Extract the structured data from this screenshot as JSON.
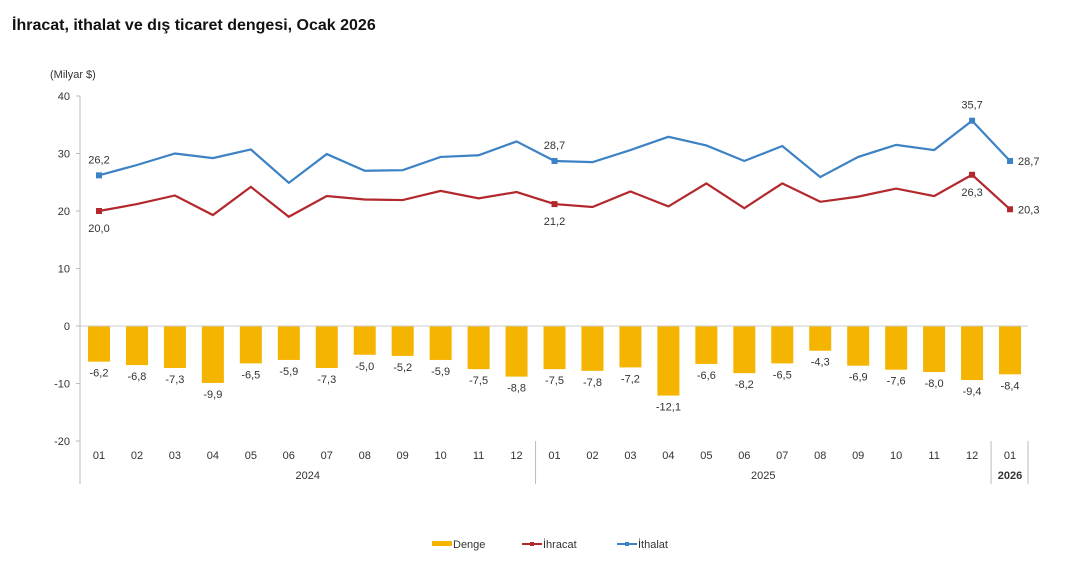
{
  "title": "İhracat, ithalat ve dış ticaret dengesi, Ocak 2026",
  "chart_data": {
    "type": "bar+line",
    "title": "İhracat, ithalat ve dış ticaret dengesi, Ocak 2026",
    "ylabel": "(Milyar $)",
    "ylim": [
      -20,
      40
    ],
    "yticks": [
      -20,
      -10,
      0,
      10,
      20,
      30,
      40
    ],
    "grid": false,
    "legend_position": "bottom",
    "categories": [
      "01",
      "02",
      "03",
      "04",
      "05",
      "06",
      "07",
      "08",
      "09",
      "10",
      "11",
      "12",
      "01",
      "02",
      "03",
      "04",
      "05",
      "06",
      "07",
      "08",
      "09",
      "10",
      "11",
      "12",
      "01"
    ],
    "year_groups": [
      {
        "label": "2024",
        "count": 12
      },
      {
        "label": "2025",
        "count": 12
      },
      {
        "label": "2026",
        "count": 1
      }
    ],
    "series": [
      {
        "name": "Denge",
        "type": "bar",
        "color": "#F5B400",
        "values": [
          -6.2,
          -6.8,
          -7.3,
          -9.9,
          -6.5,
          -5.9,
          -7.3,
          -5.0,
          -5.2,
          -5.9,
          -7.5,
          -8.8,
          -7.5,
          -7.8,
          -7.2,
          -12.1,
          -6.6,
          -8.2,
          -6.5,
          -4.3,
          -6.9,
          -7.6,
          -8.0,
          -9.4,
          -8.4
        ],
        "labels": [
          "-6,2",
          "-6,8",
          "-7,3",
          "-9,9",
          "-6,5",
          "-5,9",
          "-7,3",
          "-5,0",
          "-5,2",
          "-5,9",
          "-7,5",
          "-8,8",
          "-7,5",
          "-7,8",
          "-7,2",
          "-12,1",
          "-6,6",
          "-8,2",
          "-6,5",
          "-4,3",
          "-6,9",
          "-7,6",
          "-8,0",
          "-9,4",
          "-8,4"
        ]
      },
      {
        "name": "İhracat",
        "type": "line",
        "color": "#B3282D",
        "values": [
          20.0,
          21.2,
          22.7,
          19.3,
          24.2,
          19.0,
          22.6,
          22.0,
          21.9,
          23.5,
          22.2,
          23.3,
          21.2,
          20.7,
          23.4,
          20.8,
          24.8,
          20.5,
          24.8,
          21.6,
          22.5,
          23.9,
          22.6,
          26.3,
          20.3
        ],
        "point_labels": [
          {
            "index": 0,
            "text": "20,0",
            "pos": "below"
          },
          {
            "index": 12,
            "text": "21,2",
            "pos": "below"
          },
          {
            "index": 23,
            "text": "26,3",
            "pos": "below"
          },
          {
            "index": 24,
            "text": "20,3",
            "pos": "right"
          }
        ]
      },
      {
        "name": "İthalat",
        "type": "line",
        "color": "#3C82C4",
        "values": [
          26.2,
          28.0,
          30.0,
          29.2,
          30.7,
          24.9,
          29.9,
          27.0,
          27.1,
          29.4,
          29.7,
          32.1,
          28.7,
          28.5,
          30.6,
          32.9,
          31.4,
          28.7,
          31.3,
          25.9,
          29.4,
          31.5,
          30.6,
          35.7,
          28.7
        ],
        "point_labels": [
          {
            "index": 0,
            "text": "26,2",
            "pos": "above"
          },
          {
            "index": 12,
            "text": "28,7",
            "pos": "above"
          },
          {
            "index": 23,
            "text": "35,7",
            "pos": "above"
          },
          {
            "index": 24,
            "text": "28,7",
            "pos": "right"
          }
        ]
      }
    ]
  }
}
